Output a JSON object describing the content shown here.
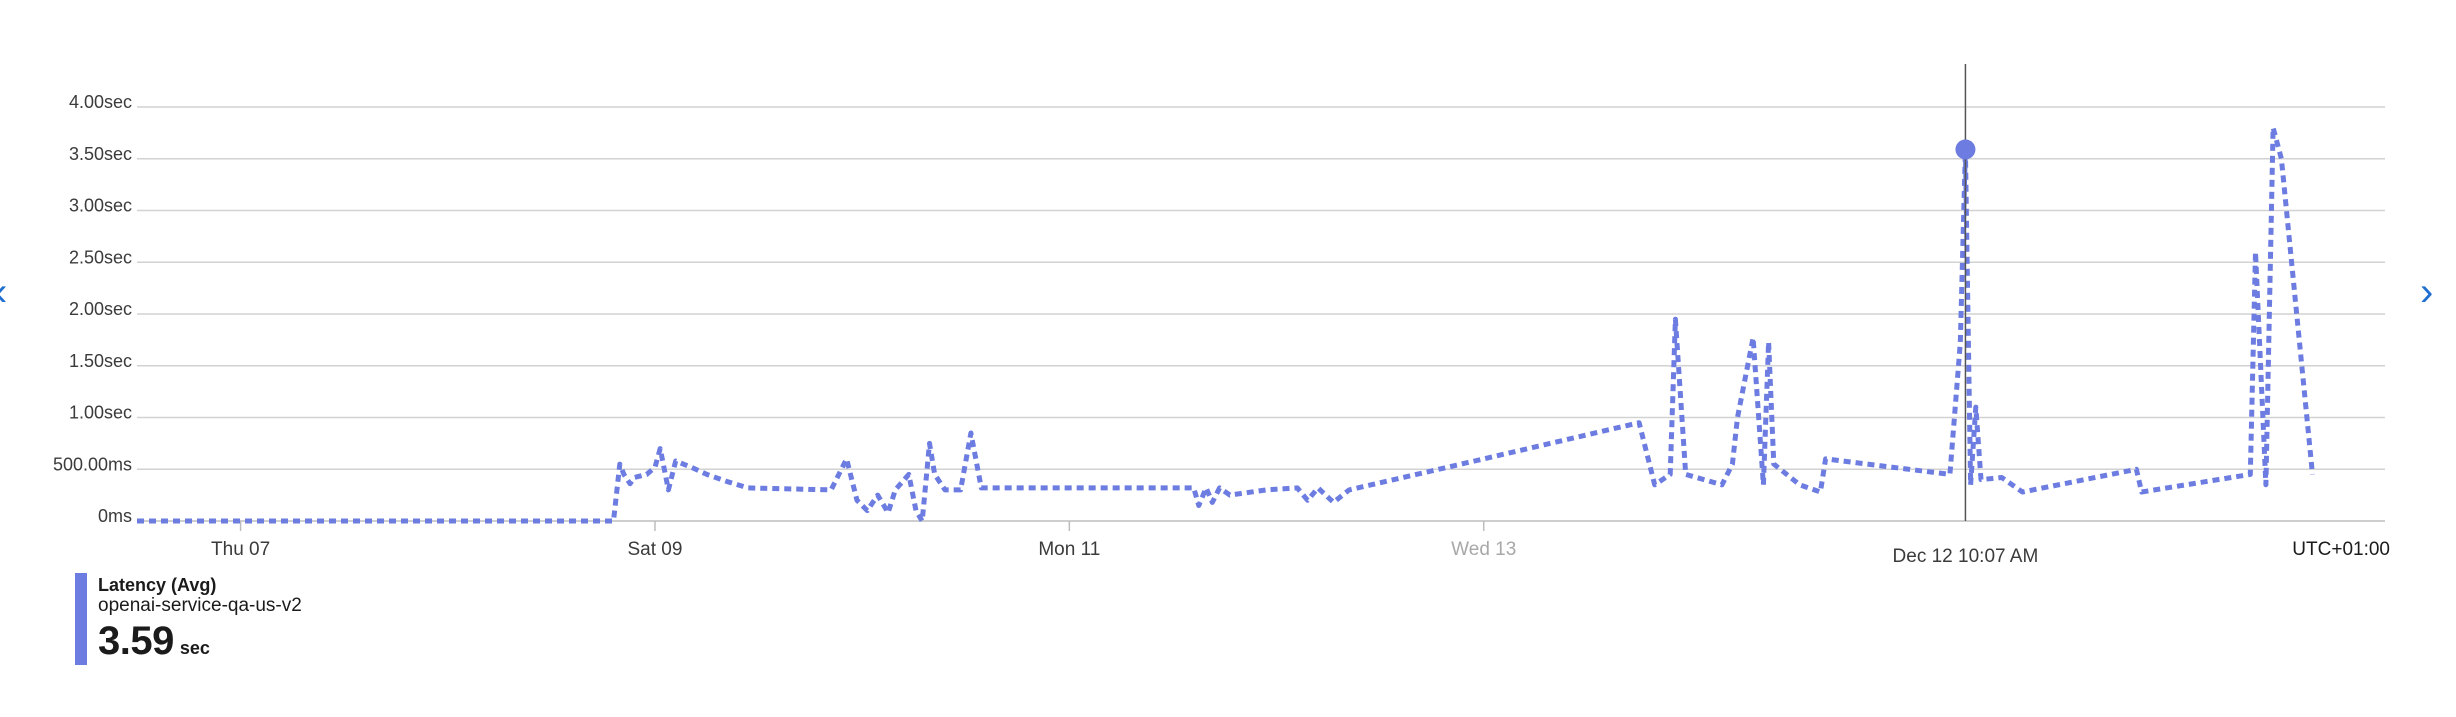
{
  "chart_data": {
    "type": "line",
    "x_labels": [
      "Thu 07",
      "Sat 09",
      "Mon 11",
      "Wed 13"
    ],
    "y_tick_labels": [
      "0ms",
      "500.00ms",
      "1.00sec",
      "1.50sec",
      "2.00sec",
      "2.50sec",
      "3.00sec",
      "3.50sec",
      "4.00sec"
    ],
    "ylim": [
      0,
      4.0
    ],
    "y_unit": "sec",
    "timezone_label": "UTC+01:00",
    "cursor": {
      "label": "Dec 12 10:07 AM",
      "value": 3.59
    },
    "colors": {
      "series": "#6c7ce0",
      "grid": "#d2d2d2",
      "axis_text": "#3b3b3b",
      "cursor_line": "#555555",
      "faded_tick": "#a8a8a8",
      "nav_arrow": "#1f6fd1"
    },
    "series": [
      {
        "name": "Latency (Avg)",
        "resource": "openai-service-qa-us-v2",
        "points": [
          [
            0.0,
            0.0
          ],
          [
            4.6,
            0.0
          ],
          [
            4.66,
            0.55
          ],
          [
            4.7,
            0.45
          ],
          [
            4.76,
            0.36
          ],
          [
            4.8,
            0.42
          ],
          [
            4.92,
            0.45
          ],
          [
            5.0,
            0.52
          ],
          [
            5.05,
            0.7
          ],
          [
            5.08,
            0.55
          ],
          [
            5.13,
            0.3
          ],
          [
            5.2,
            0.58
          ],
          [
            5.35,
            0.52
          ],
          [
            5.5,
            0.45
          ],
          [
            5.7,
            0.38
          ],
          [
            5.9,
            0.32
          ],
          [
            6.3,
            0.31
          ],
          [
            6.7,
            0.3
          ],
          [
            6.85,
            0.6
          ],
          [
            6.95,
            0.2
          ],
          [
            7.05,
            0.1
          ],
          [
            7.15,
            0.25
          ],
          [
            7.25,
            0.08
          ],
          [
            7.32,
            0.3
          ],
          [
            7.45,
            0.45
          ],
          [
            7.52,
            0.1
          ],
          [
            7.58,
            0.0
          ],
          [
            7.65,
            0.75
          ],
          [
            7.7,
            0.45
          ],
          [
            7.8,
            0.3
          ],
          [
            7.95,
            0.3
          ],
          [
            8.05,
            0.85
          ],
          [
            8.15,
            0.32
          ],
          [
            8.5,
            0.32
          ],
          [
            9.5,
            0.32
          ],
          [
            10.2,
            0.32
          ],
          [
            10.25,
            0.15
          ],
          [
            10.32,
            0.32
          ],
          [
            10.38,
            0.18
          ],
          [
            10.45,
            0.32
          ],
          [
            10.55,
            0.25
          ],
          [
            10.9,
            0.3
          ],
          [
            11.2,
            0.32
          ],
          [
            11.3,
            0.2
          ],
          [
            11.4,
            0.32
          ],
          [
            11.55,
            0.18
          ],
          [
            11.7,
            0.3
          ],
          [
            13.0,
            0.6
          ],
          [
            14.5,
            0.95
          ],
          [
            14.65,
            0.35
          ],
          [
            14.8,
            0.45
          ],
          [
            14.85,
            1.95
          ],
          [
            14.95,
            0.45
          ],
          [
            15.3,
            0.35
          ],
          [
            15.4,
            0.55
          ],
          [
            15.45,
            1.0
          ],
          [
            15.6,
            1.77
          ],
          [
            15.7,
            0.35
          ],
          [
            15.75,
            1.73
          ],
          [
            15.8,
            0.55
          ],
          [
            16.05,
            0.35
          ],
          [
            16.25,
            0.28
          ],
          [
            16.3,
            0.6
          ],
          [
            17.5,
            0.45
          ],
          [
            17.6,
            1.72
          ],
          [
            17.65,
            3.59
          ],
          [
            17.7,
            0.35
          ],
          [
            17.75,
            1.1
          ],
          [
            17.8,
            0.4
          ],
          [
            18.0,
            0.42
          ],
          [
            18.2,
            0.28
          ],
          [
            19.3,
            0.5
          ],
          [
            19.35,
            0.28
          ],
          [
            20.4,
            0.45
          ],
          [
            20.45,
            2.6
          ],
          [
            20.55,
            0.35
          ],
          [
            20.62,
            3.8
          ],
          [
            20.7,
            3.5
          ],
          [
            21.0,
            0.45
          ]
        ]
      }
    ],
    "x_label_positions_days": [
      1.0,
      5.0,
      9.0,
      13.0
    ],
    "x_range_days": [
      0,
      21.7
    ]
  },
  "legend": {
    "title": "Latency (Avg)",
    "subtitle": "openai-service-qa-us-v2",
    "value": "3.59",
    "unit": "sec"
  },
  "nav": {
    "left_icon": "chevron-left-icon",
    "right_icon": "chevron-right-icon",
    "left_glyph": "‹",
    "right_glyph": "›"
  }
}
